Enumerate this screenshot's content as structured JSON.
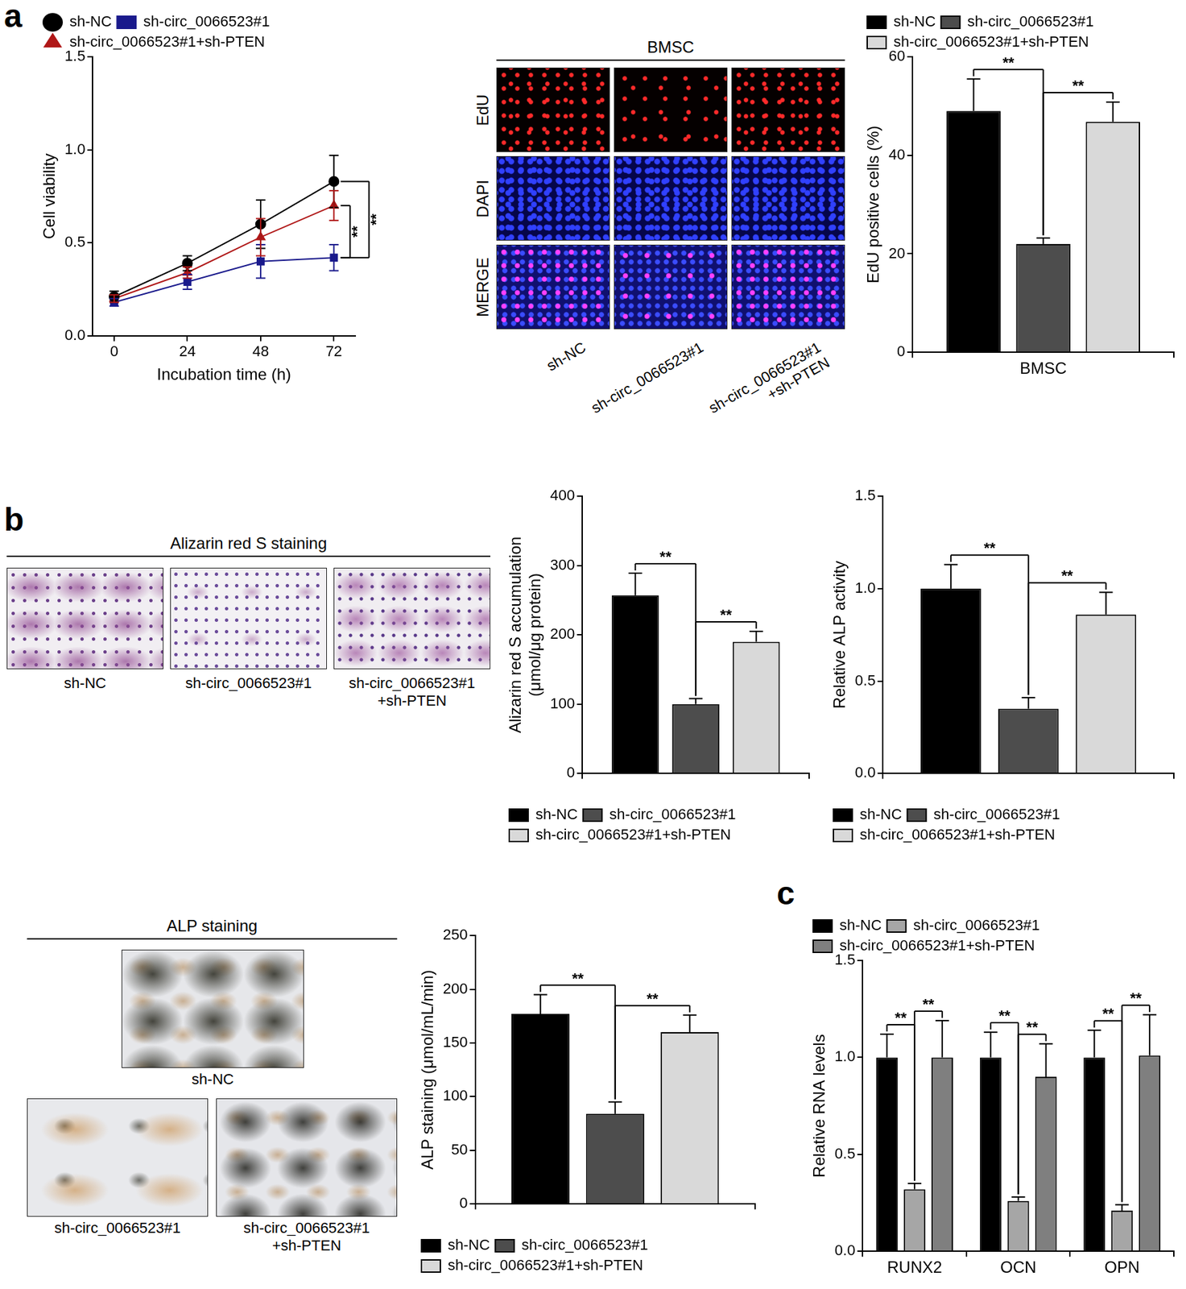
{
  "panel_letters": [
    "a",
    "b",
    "c"
  ],
  "image_panels": [
    {
      "title": "BMSC",
      "row_labels": [
        "EdU",
        "DAPI",
        "MERGE"
      ],
      "column_labels": [
        [
          "sh-NC"
        ],
        [
          "sh-circ_0066523#1"
        ],
        [
          "sh-circ_0066523#1",
          "+sh-PTEN"
        ]
      ]
    },
    {
      "title": "Alizarin red S staining",
      "column_labels": [
        [
          "sh-NC"
        ],
        [
          "sh-circ_0066523#1"
        ],
        [
          "sh-circ_0066523#1",
          "+sh-PTEN"
        ]
      ]
    },
    {
      "title": "ALP staining",
      "column_labels": [
        [
          "sh-NC"
        ],
        [
          "sh-circ_0066523#1"
        ],
        [
          "sh-circ_0066523#1",
          "+sh-PTEN"
        ]
      ]
    }
  ],
  "chart_data": [
    {
      "type": "line",
      "x_label": "Incubation time (h)",
      "y_label": "Cell viability",
      "x": [
        0,
        24,
        48,
        72
      ],
      "xlim": [
        -7,
        79
      ],
      "xticks": [
        0,
        24,
        48,
        72
      ],
      "ylim": [
        0,
        1.5
      ],
      "yticks": [
        {
          "value": 0,
          "label": "0.0"
        },
        {
          "value": 0.5,
          "label": "0.5"
        },
        {
          "value": 1,
          "label": "1.0"
        },
        {
          "value": 1.5,
          "label": "1.5"
        }
      ],
      "grid": false,
      "legend": "top",
      "series": [
        {
          "name": "sh-NC",
          "color": "#000000",
          "marker": "circle",
          "values": [
            0.21,
            0.39,
            0.6,
            0.83
          ],
          "errors": [
            0.03,
            0.04,
            0.13,
            0.14
          ]
        },
        {
          "name": "sh-circ_0066523#1",
          "color": "#1a1a8c",
          "marker": "square",
          "values": [
            0.18,
            0.29,
            0.4,
            0.42
          ],
          "errors": [
            0.02,
            0.04,
            0.09,
            0.07
          ]
        },
        {
          "name": "sh-circ_0066523#1+sh-PTEN",
          "color": "#b01818",
          "marker": "triangle",
          "values": [
            0.2,
            0.34,
            0.53,
            0.7
          ],
          "errors": [
            0.02,
            0.03,
            0.1,
            0.08
          ]
        }
      ],
      "significance": [
        {
          "x": 72,
          "between": [
            "sh-circ_0066523#1+sh-PTEN",
            "sh-circ_0066523#1"
          ],
          "label": "**"
        },
        {
          "x": 72,
          "between": [
            "sh-NC",
            "sh-circ_0066523#1"
          ],
          "label": "**"
        }
      ]
    },
    {
      "type": "bar",
      "y_label": "EdU positive cells (%)",
      "categories": [
        "BMSC"
      ],
      "ylim": [
        0,
        60
      ],
      "yticks": [
        0,
        20,
        40,
        60
      ],
      "grid": false,
      "legend": "top",
      "series": [
        {
          "name": "sh-NC",
          "color": "#000000",
          "values": [
            49
          ],
          "errors": [
            6.5
          ]
        },
        {
          "name": "sh-circ_0066523#1",
          "color": "#4d4d4d",
          "values": [
            22
          ],
          "errors": [
            1.2
          ]
        },
        {
          "name": "sh-circ_0066523#1+sh-PTEN",
          "color": "#d9d9d9",
          "values": [
            46.8
          ],
          "errors": [
            4
          ]
        }
      ],
      "significance": [
        {
          "category": "BMSC",
          "between": [
            "sh-NC",
            "sh-circ_0066523#1"
          ],
          "label": "**"
        },
        {
          "category": "BMSC",
          "between": [
            "sh-circ_0066523#1",
            "sh-circ_0066523#1+sh-PTEN"
          ],
          "label": "**"
        }
      ]
    },
    {
      "type": "bar",
      "y_label": [
        "Alizarin red S accumulation",
        "(μmol/μg protein)"
      ],
      "categories": [
        null
      ],
      "ylim": [
        0,
        400
      ],
      "yticks": [
        0,
        100,
        200,
        300,
        400
      ],
      "grid": false,
      "legend": "bottom",
      "series": [
        {
          "name": "sh-NC",
          "color": "#000000",
          "values": [
            257
          ],
          "errors": [
            32
          ]
        },
        {
          "name": "sh-circ_0066523#1",
          "color": "#4d4d4d",
          "values": [
            100
          ],
          "errors": [
            8
          ]
        },
        {
          "name": "sh-circ_0066523#1+sh-PTEN",
          "color": "#d9d9d9",
          "values": [
            190
          ],
          "errors": [
            15
          ]
        }
      ],
      "significance": [
        {
          "category": null,
          "between": [
            "sh-NC",
            "sh-circ_0066523#1"
          ],
          "label": "**"
        },
        {
          "category": null,
          "between": [
            "sh-circ_0066523#1",
            "sh-circ_0066523#1+sh-PTEN"
          ],
          "label": "**"
        }
      ]
    },
    {
      "type": "bar",
      "y_label": "Relative ALP activity",
      "categories": [
        null
      ],
      "ylim": [
        0,
        1.5
      ],
      "yticks": [
        {
          "value": 0,
          "label": "0.0"
        },
        {
          "value": 0.5,
          "label": "0.5"
        },
        {
          "value": 1,
          "label": "1.0"
        },
        {
          "value": 1.5,
          "label": "1.5"
        }
      ],
      "grid": false,
      "legend": "bottom",
      "series": [
        {
          "name": "sh-NC",
          "color": "#000000",
          "values": [
            1.0
          ],
          "errors": [
            0.13
          ]
        },
        {
          "name": "sh-circ_0066523#1",
          "color": "#4d4d4d",
          "values": [
            0.35
          ],
          "errors": [
            0.06
          ]
        },
        {
          "name": "sh-circ_0066523#1+sh-PTEN",
          "color": "#d9d9d9",
          "values": [
            0.86
          ],
          "errors": [
            0.12
          ]
        }
      ],
      "significance": [
        {
          "category": null,
          "between": [
            "sh-NC",
            "sh-circ_0066523#1"
          ],
          "label": "**"
        },
        {
          "category": null,
          "between": [
            "sh-circ_0066523#1",
            "sh-circ_0066523#1+sh-PTEN"
          ],
          "label": "**"
        }
      ]
    },
    {
      "type": "bar",
      "y_label": "ALP staining (μmol/mL/min)",
      "categories": [
        null
      ],
      "ylim": [
        0,
        250
      ],
      "yticks": [
        0,
        50,
        100,
        150,
        200,
        250
      ],
      "grid": false,
      "legend": "bottom",
      "series": [
        {
          "name": "sh-NC",
          "color": "#000000",
          "values": [
            177
          ],
          "errors": [
            18
          ]
        },
        {
          "name": "sh-circ_0066523#1",
          "color": "#4d4d4d",
          "values": [
            84
          ],
          "errors": [
            11
          ]
        },
        {
          "name": "sh-circ_0066523#1+sh-PTEN",
          "color": "#d9d9d9",
          "values": [
            160
          ],
          "errors": [
            16
          ]
        }
      ],
      "significance": [
        {
          "category": null,
          "between": [
            "sh-NC",
            "sh-circ_0066523#1"
          ],
          "label": "**"
        },
        {
          "category": null,
          "between": [
            "sh-circ_0066523#1",
            "sh-circ_0066523#1+sh-PTEN"
          ],
          "label": "**"
        }
      ]
    },
    {
      "type": "bar",
      "y_label": "Relative RNA levels",
      "categories": [
        "RUNX2",
        "OCN",
        "OPN"
      ],
      "ylim": [
        0,
        1.5
      ],
      "yticks": [
        {
          "value": 0,
          "label": "0.0"
        },
        {
          "value": 0.5,
          "label": "0.5"
        },
        {
          "value": 1,
          "label": "1.0"
        },
        {
          "value": 1.5,
          "label": "1.5"
        }
      ],
      "grid": false,
      "legend": "top",
      "series": [
        {
          "name": "sh-NC",
          "color": "#000000",
          "values": [
            1.0,
            1.0,
            1.0
          ],
          "errors": [
            0.12,
            0.13,
            0.14
          ]
        },
        {
          "name": "sh-circ_0066523#1",
          "color": "#a6a6a6",
          "values": [
            0.32,
            0.26,
            0.21
          ],
          "errors": [
            0.03,
            0.02,
            0.03
          ]
        },
        {
          "name": "sh-circ_0066523#1+sh-PTEN",
          "color": "#7f7f7f",
          "values": [
            1.0,
            0.9,
            1.01
          ],
          "errors": [
            0.19,
            0.17,
            0.21
          ]
        }
      ],
      "significance": [
        {
          "category": "RUNX2",
          "between": [
            "sh-NC",
            "sh-circ_0066523#1"
          ],
          "label": "**"
        },
        {
          "category": "RUNX2",
          "between": [
            "sh-circ_0066523#1",
            "sh-circ_0066523#1+sh-PTEN"
          ],
          "label": "**"
        },
        {
          "category": "OCN",
          "between": [
            "sh-NC",
            "sh-circ_0066523#1"
          ],
          "label": "**"
        },
        {
          "category": "OCN",
          "between": [
            "sh-circ_0066523#1",
            "sh-circ_0066523#1+sh-PTEN"
          ],
          "label": "**"
        },
        {
          "category": "OPN",
          "between": [
            "sh-NC",
            "sh-circ_0066523#1"
          ],
          "label": "**"
        },
        {
          "category": "OPN",
          "between": [
            "sh-circ_0066523#1",
            "sh-circ_0066523#1+sh-PTEN"
          ],
          "label": "**"
        }
      ]
    }
  ]
}
